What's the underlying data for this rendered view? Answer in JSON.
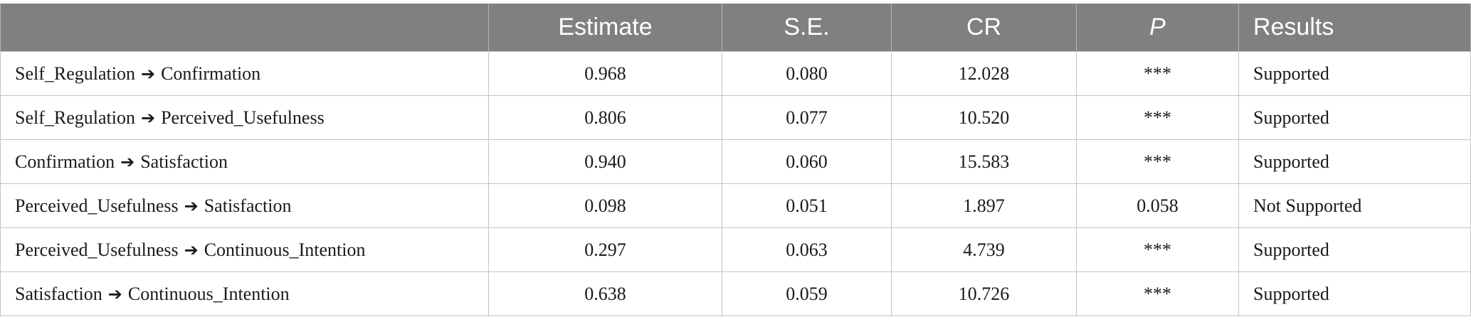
{
  "header": {
    "path": "",
    "estimate": "Estimate",
    "se": "S.E.",
    "cr": "CR",
    "p": "P",
    "results": "Results"
  },
  "rows": [
    {
      "from": "Self_Regulation",
      "arrow": "➔",
      "to": "Confirmation",
      "estimate": "0.968",
      "se": "0.080",
      "cr": "12.028",
      "p": "***",
      "result": "Supported"
    },
    {
      "from": "Self_Regulation",
      "arrow": "➔",
      "to": "Perceived_Usefulness",
      "estimate": "0.806",
      "se": "0.077",
      "cr": "10.520",
      "p": "***",
      "result": "Supported"
    },
    {
      "from": "Confirmation",
      "arrow": "➔",
      "to": "Satisfaction",
      "estimate": "0.940",
      "se": "0.060",
      "cr": "15.583",
      "p": "***",
      "result": "Supported"
    },
    {
      "from": "Perceived_Usefulness",
      "arrow": "➔",
      "to": "Satisfaction",
      "estimate": "0.098",
      "se": "0.051",
      "cr": "1.897",
      "p": "0.058",
      "result": "Not Supported"
    },
    {
      "from": "Perceived_Usefulness",
      "arrow": "➔",
      "to": "Continuous_Intention",
      "estimate": "0.297",
      "se": "0.063",
      "cr": "4.739",
      "p": "***",
      "result": "Supported"
    },
    {
      "from": "Satisfaction",
      "arrow": "➔",
      "to": "Continuous_Intention",
      "estimate": "0.638",
      "se": "0.059",
      "cr": "10.726",
      "p": "***",
      "result": "Supported"
    }
  ]
}
